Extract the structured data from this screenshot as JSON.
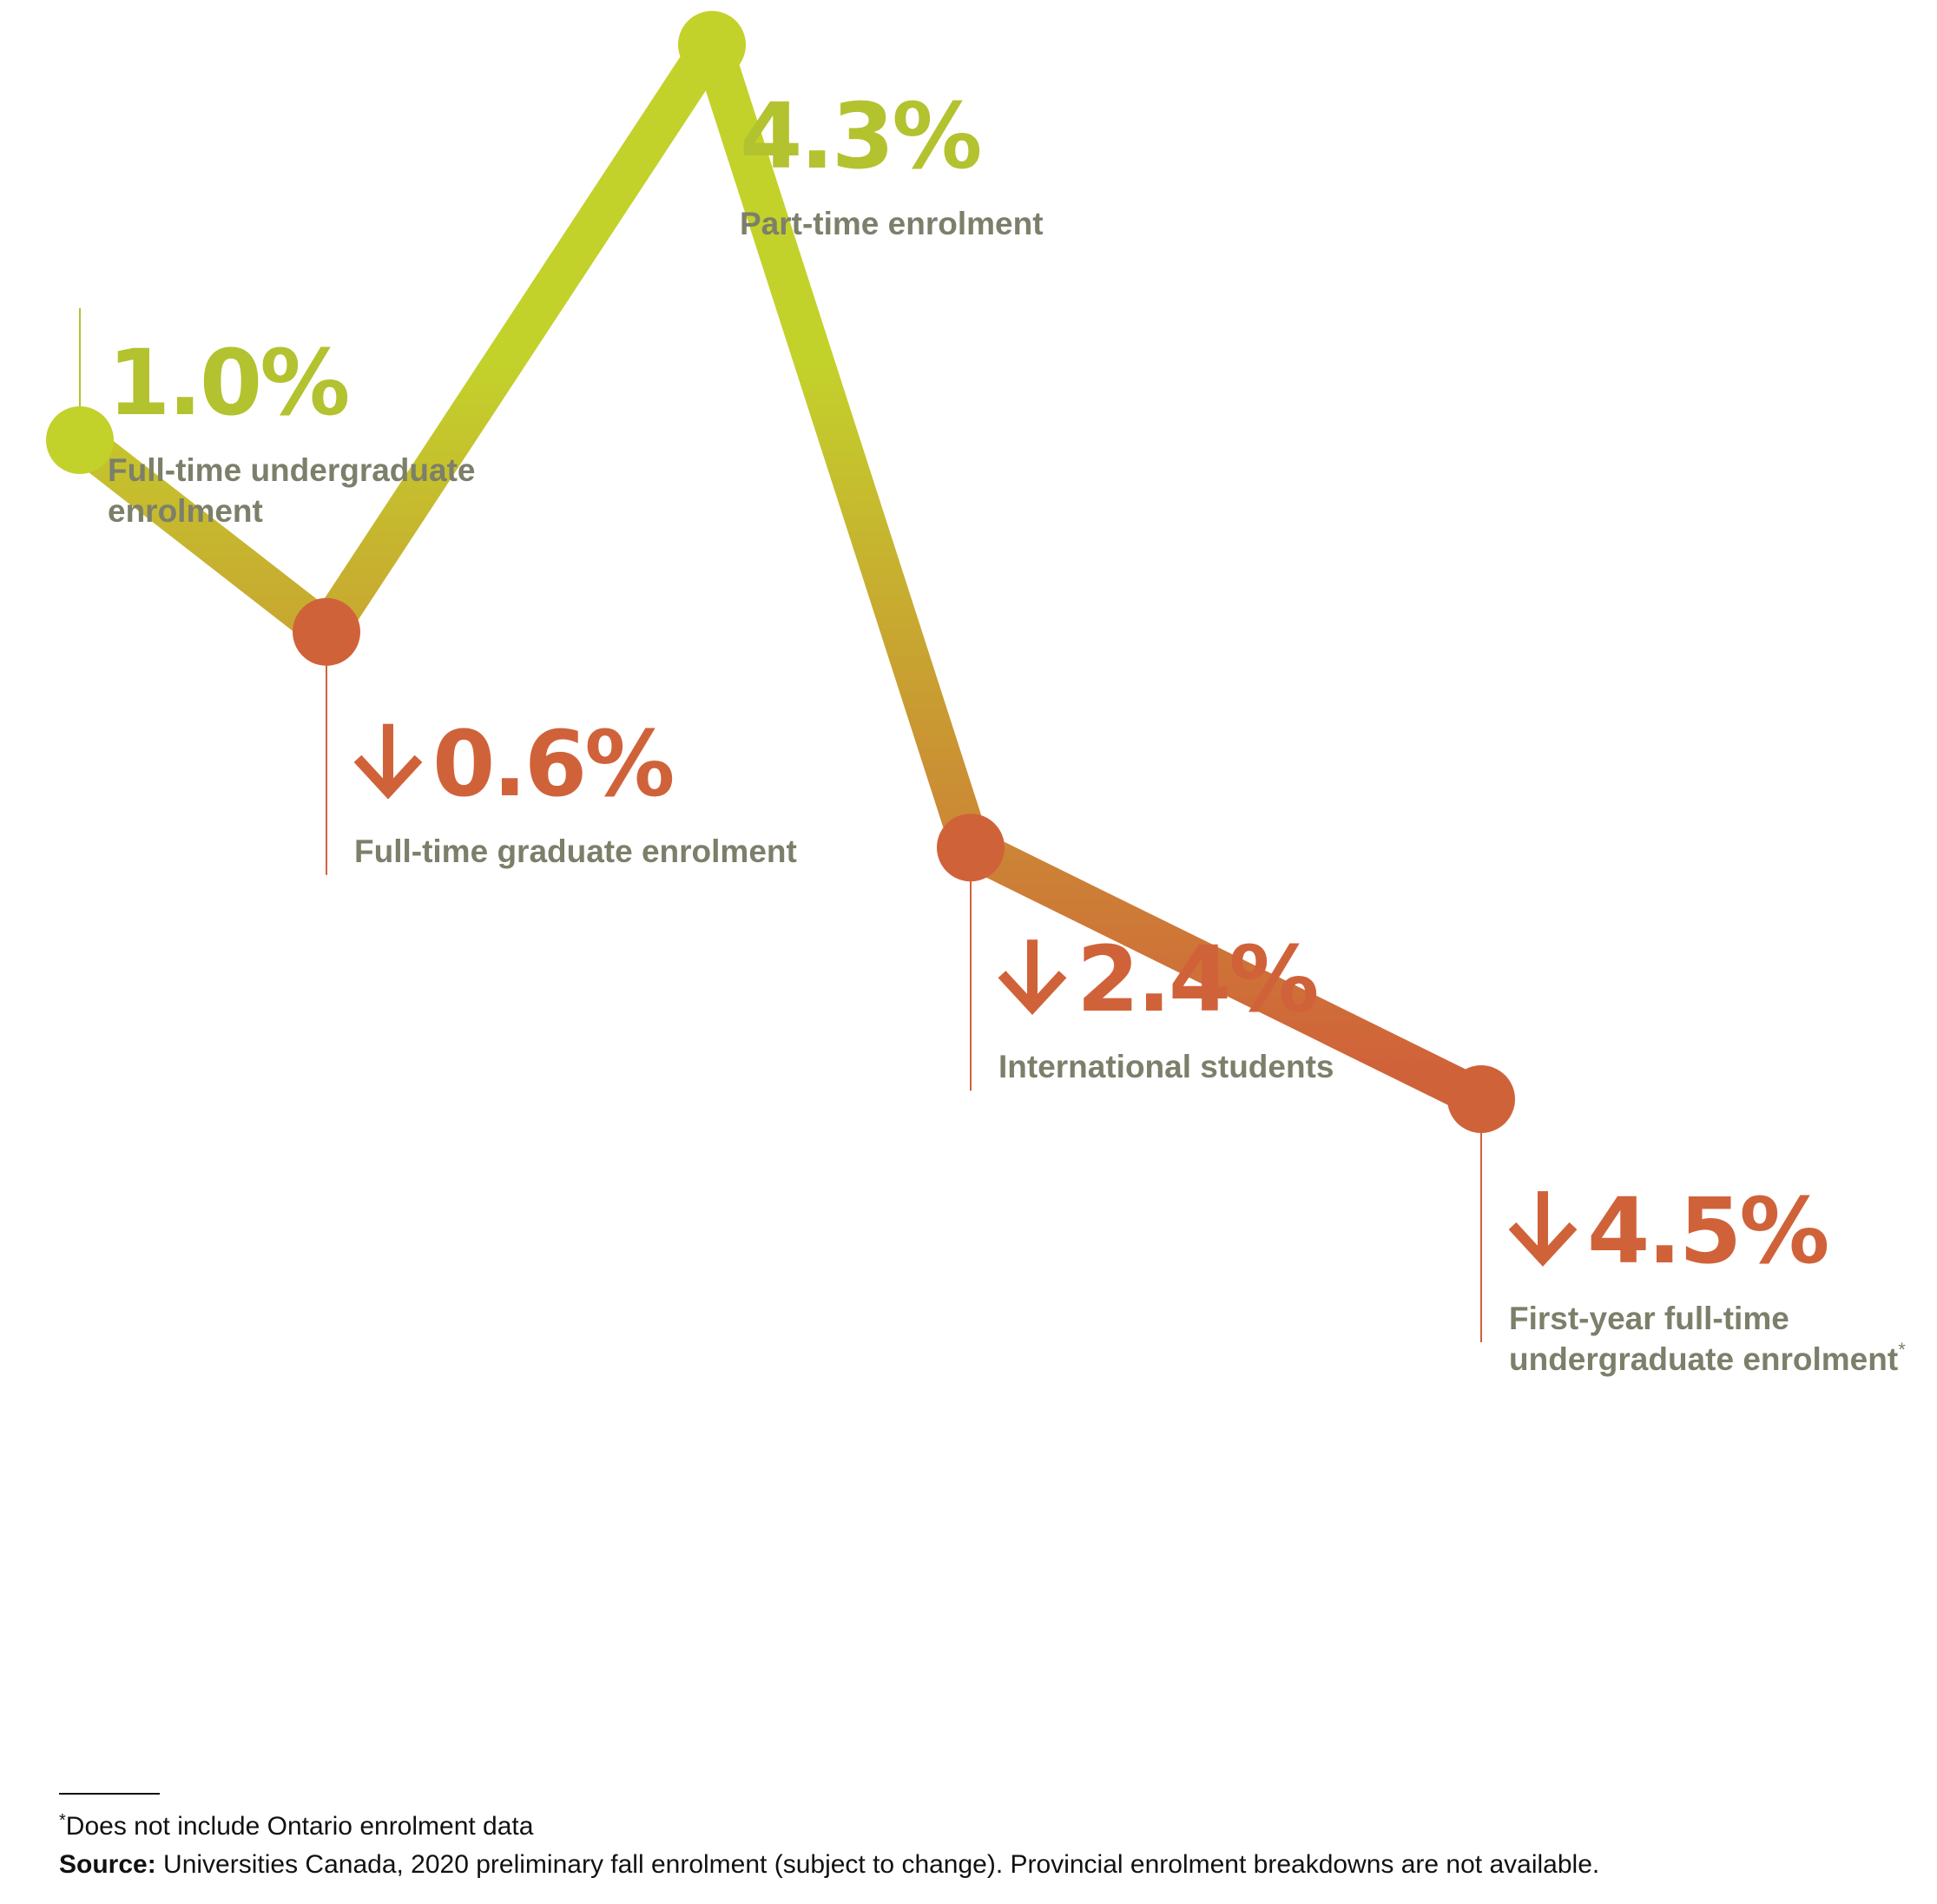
{
  "colors": {
    "increase": "#b3c22f",
    "increase_point": "#c3d12b",
    "decrease": "#d0623a",
    "label_text": "#7c7f6a",
    "footnote_text": "#111111"
  },
  "chart_data": {
    "type": "line",
    "grid": false,
    "legend": "none",
    "points": [
      {
        "value": 1.0,
        "display": "1.0%",
        "direction": "up",
        "label_lines": [
          "Full-time undergraduate",
          "enrolment"
        ],
        "asterisk": ""
      },
      {
        "value": -0.6,
        "display": "0.6%",
        "direction": "down",
        "label_lines": [
          "Full-time graduate enrolment"
        ],
        "asterisk": ""
      },
      {
        "value": 4.3,
        "display": "4.3%",
        "direction": "up",
        "label_lines": [
          "Part-time enrolment"
        ],
        "asterisk": ""
      },
      {
        "value": -2.4,
        "display": "2.4%",
        "direction": "down",
        "label_lines": [
          "International students"
        ],
        "asterisk": ""
      },
      {
        "value": -4.5,
        "display": "4.5%",
        "direction": "down",
        "label_lines": [
          "First-year full-time",
          "undergraduate enrolment"
        ],
        "asterisk": "*"
      }
    ]
  },
  "footnote": {
    "asterisk": "*",
    "note": "Does not include Ontario enrolment data",
    "source_label": "Source:",
    "source_text": " Universities Canada, 2020 preliminary fall enrolment (subject to change). Provincial enrolment breakdowns are not available."
  }
}
